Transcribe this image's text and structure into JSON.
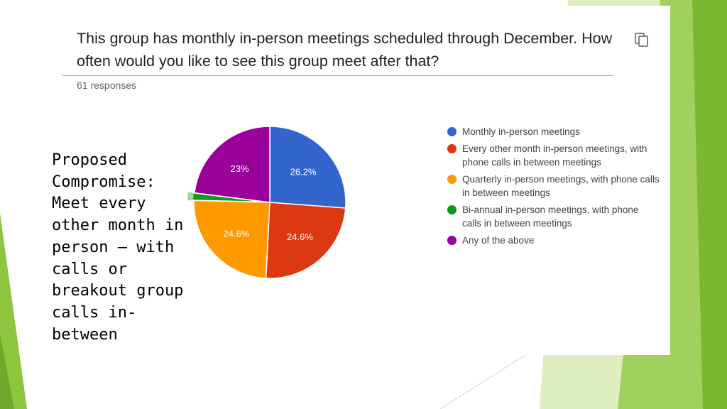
{
  "slide": {
    "side_text": "Proposed\nCompromise:\nMeet every\nother month in\nperson – with\ncalls or\nbreakout group\ncalls in-\nbetween"
  },
  "card": {
    "question": "This group has monthly in-person meetings scheduled through December. How often would you like to see this group meet after that?",
    "responses": "61 responses",
    "copy_icon": "copy-icon"
  },
  "colors": {
    "accent_green": "#8bc34a",
    "slide_green_light": "#c5e08a",
    "slide_green_dark": "#7cb82f"
  },
  "chart_data": {
    "type": "pie",
    "title": "",
    "slices": [
      {
        "label": "Monthly in-person meetings",
        "value": 26.2,
        "display": "26.2%",
        "color": "#3366cc"
      },
      {
        "label": "Every other month in-person meetings, with phone calls in between meetings",
        "value": 24.6,
        "display": "24.6%",
        "color": "#dc3912"
      },
      {
        "label": "Quarterly in-person meetings, with phone calls in between meetings",
        "value": 24.6,
        "display": "24.6%",
        "color": "#ff9900"
      },
      {
        "label": "Bi-annual in-person meetings, with phone calls in between meetings",
        "value": 1.6,
        "display": "",
        "color": "#109618"
      },
      {
        "label": "Any of the above",
        "value": 23.0,
        "display": "23%",
        "color": "#990099"
      }
    ],
    "start_angle_deg": 90,
    "direction": "clockwise",
    "legend_position": "right"
  }
}
